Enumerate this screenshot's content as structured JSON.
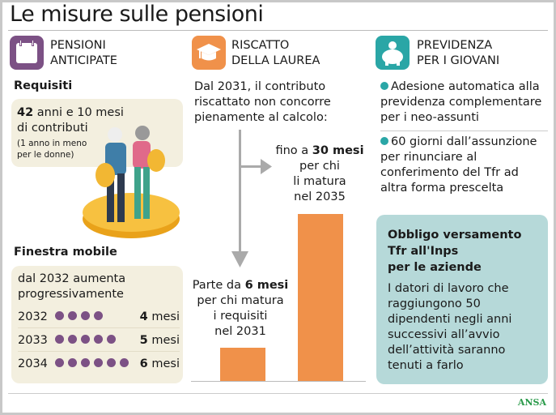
{
  "title": "Le misure sulle pensioni",
  "colors": {
    "purple": "#7c5185",
    "orange": "#f0914a",
    "teal": "#2aa6a6",
    "beige": "#f3efdf",
    "tealbox": "#b6d9d9"
  },
  "col1": {
    "icon": "calendar-icon",
    "heading": [
      "PENSIONI",
      "ANTICIPATE"
    ],
    "req_title": "Requisiti",
    "req_bold": "42",
    "req_line1": " anni e 10 mesi",
    "req_line2": "di contributi",
    "req_note1": "(1 anno in meno",
    "req_note2": "per le donne)",
    "finestra_title": "Finestra mobile",
    "finestra_intro1": "dal 2032 aumenta",
    "finestra_intro2": "progressivamente",
    "rows": [
      {
        "year": "2032",
        "dots": 4,
        "num": "4",
        "unit": " mesi"
      },
      {
        "year": "2033",
        "dots": 5,
        "num": "5",
        "unit": " mesi"
      },
      {
        "year": "2034",
        "dots": 6,
        "num": "6",
        "unit": " mesi"
      }
    ]
  },
  "col2": {
    "icon": "graduation-cap-icon",
    "heading": [
      "RISCATTO",
      "DELLA LAUREA"
    ],
    "intro": [
      "Dal 2031, il contributo",
      "riscattato non concorre",
      "pienamente al calcolo:"
    ],
    "label_high": {
      "pre": "fino a ",
      "bold": "30 mesi",
      "l2": "per chi",
      "l3": "li matura",
      "l4": "nel 2035"
    },
    "label_low": {
      "pre": "Parte da ",
      "bold": "6 mesi",
      "l2": "per chi matura",
      "l3": "i requisiti",
      "l4": "nel 2031"
    }
  },
  "chart_data": {
    "type": "bar",
    "categories": [
      "2031",
      "2035"
    ],
    "values": [
      6,
      30
    ],
    "ylabel": "mesi"
  },
  "col3": {
    "icon": "piggy-bank-icon",
    "heading": [
      "PREVIDENZA",
      "PER I GIOVANI"
    ],
    "bullets": [
      [
        "Adesione automatica alla",
        "previdenza complementare",
        "per i neo-assunti"
      ],
      [
        "60 giorni dall’assunzione",
        "per rinunciare al",
        "conferimento del Tfr ad",
        "altra forma prescelta"
      ]
    ],
    "box_title": [
      "Obbligo versamento",
      "Tfr all'Inps",
      "per le aziende"
    ],
    "box_text": [
      "I datori di lavoro che",
      "raggiungono 50",
      "dipendenti negli anni",
      "successivi all’avvio",
      "dell’attività saranno",
      "tenuti a farlo"
    ]
  },
  "footer": {
    "logo": "ANSA"
  }
}
